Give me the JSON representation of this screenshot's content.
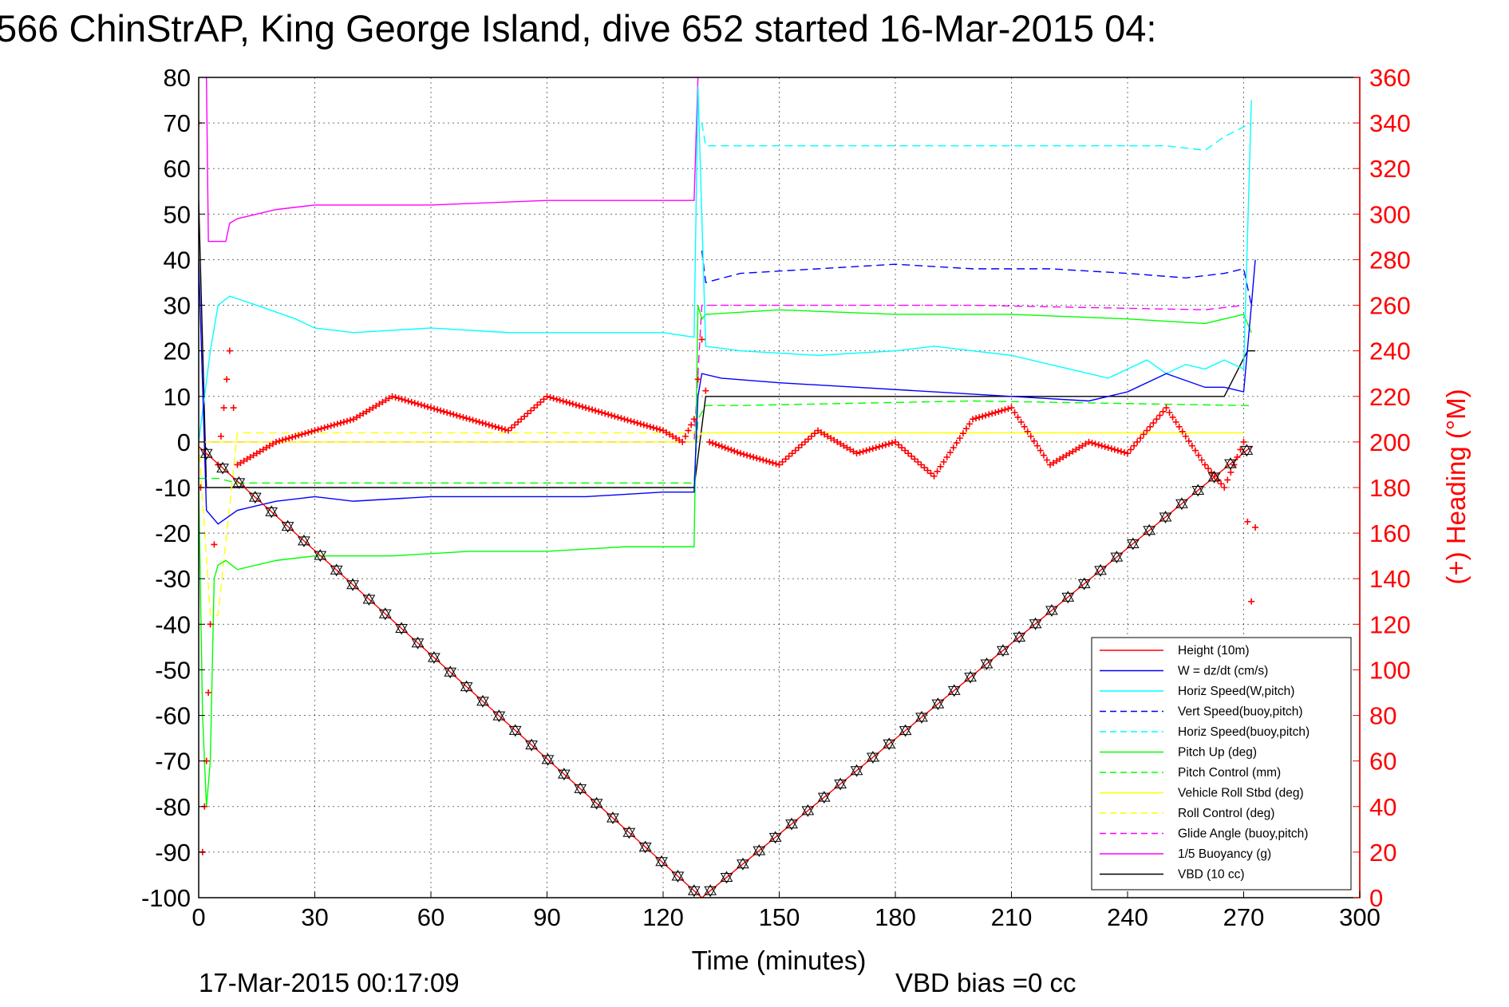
{
  "title": "566 ChinStrAP, King George Island, dive 652 started 16-Mar-2015 04:",
  "footer": {
    "timestamp": "17-Mar-2015 00:17:09",
    "vbd_bias": "VBD bias =0 cc"
  },
  "chart_data": {
    "type": "line",
    "title": "566 ChinStrAP, King George Island, dive 652 started 16-Mar-2015 04:",
    "xlabel": "Time (minutes)",
    "ylabel": "",
    "ylabel_right": "(+) Heading (°M)",
    "xlim": [
      0,
      300
    ],
    "ylim": [
      -100,
      80
    ],
    "ylim_right": [
      0,
      360
    ],
    "xticks": [
      "0",
      "30",
      "60",
      "90",
      "120",
      "150",
      "180",
      "210",
      "240",
      "270",
      "300"
    ],
    "yticks_left": [
      "80",
      "70",
      "60",
      "50",
      "40",
      "30",
      "20",
      "10",
      "0",
      "-10",
      "-20",
      "-30",
      "-40",
      "-50",
      "-60",
      "-70",
      "-80",
      "-90",
      "-100"
    ],
    "yticks_right": [
      "360",
      "340",
      "320",
      "300",
      "280",
      "260",
      "240",
      "220",
      "200",
      "180",
      "160",
      "140",
      "120",
      "100",
      "80",
      "60",
      "40",
      "20",
      "0"
    ],
    "grid": true,
    "legend_position": "bottom-right",
    "colors": {
      "red": "#ff0000",
      "blue": "#0000ff",
      "cyan": "#00ffff",
      "green": "#00ff00",
      "yellow": "#ffff00",
      "magenta": "#ff00ff",
      "black": "#000000"
    },
    "series": [
      {
        "name": "Height (10m)",
        "color": "#ff0000",
        "style": "solid",
        "x": [
          0,
          130,
          272
        ],
        "y": [
          -1,
          -100,
          -1
        ]
      },
      {
        "name": "W = dz/dt (cm/s)",
        "color": "#0000ff",
        "style": "solid",
        "x": [
          0,
          2,
          5,
          10,
          15,
          20,
          30,
          40,
          60,
          80,
          100,
          120,
          128,
          129,
          130,
          135,
          150,
          170,
          190,
          210,
          230,
          240,
          250,
          260,
          265,
          270,
          272,
          273
        ],
        "y": [
          40,
          -15,
          -18,
          -15,
          -14,
          -13,
          -12,
          -13,
          -12,
          -12,
          -12,
          -11,
          -11,
          10,
          15,
          14,
          13,
          12,
          11,
          10,
          9,
          11,
          15,
          12,
          12,
          11,
          30,
          40
        ]
      },
      {
        "name": "Horiz Speed(W,pitch)",
        "color": "#00ffff",
        "style": "solid",
        "x": [
          0,
          3,
          5,
          8,
          15,
          25,
          30,
          40,
          60,
          80,
          100,
          120,
          128,
          129,
          131,
          140,
          160,
          180,
          190,
          200,
          210,
          220,
          230,
          235,
          240,
          245,
          250,
          255,
          260,
          265,
          270,
          272
        ],
        "y": [
          0,
          20,
          30,
          32,
          30,
          27,
          25,
          24,
          25,
          24,
          24,
          24,
          23,
          78,
          21,
          20,
          19,
          20,
          21,
          20,
          19,
          17,
          15,
          14,
          16,
          18,
          15,
          17,
          16,
          18,
          16,
          75
        ]
      },
      {
        "name": "Vert Speed(buoy,pitch)",
        "color": "#0000ff",
        "style": "dashed",
        "x": [
          130,
          131,
          140,
          160,
          180,
          200,
          220,
          240,
          255,
          265,
          270,
          272
        ],
        "y": [
          42,
          35,
          37,
          38,
          39,
          38,
          38,
          37,
          36,
          37,
          38,
          30
        ]
      },
      {
        "name": "Horiz Speed(buoy,pitch)",
        "color": "#00ffff",
        "style": "dashed",
        "x": [
          130,
          131,
          140,
          160,
          180,
          200,
          220,
          240,
          250,
          260,
          265,
          272
        ],
        "y": [
          70,
          65,
          65,
          65,
          65,
          65,
          65,
          65,
          65,
          64,
          67,
          70
        ]
      },
      {
        "name": "Pitch Up (deg)",
        "color": "#00ff00",
        "style": "solid",
        "x": [
          0,
          1,
          2,
          3,
          4,
          5,
          7,
          10,
          20,
          30,
          50,
          70,
          90,
          110,
          128,
          129,
          130,
          131,
          150,
          180,
          210,
          240,
          260,
          265,
          270,
          272
        ],
        "y": [
          -10,
          -60,
          -80,
          -70,
          -30,
          -27,
          -26,
          -28,
          -26,
          -25,
          -25,
          -24,
          -24,
          -23,
          -23,
          30,
          27,
          28,
          29,
          28,
          28,
          27,
          26,
          27,
          28,
          24
        ]
      },
      {
        "name": "Pitch Control (mm)",
        "color": "#00ff00",
        "style": "dashed",
        "x": [
          0,
          3,
          5,
          10,
          60,
          128,
          129,
          131,
          140,
          200,
          270,
          272
        ],
        "y": [
          -8,
          -8,
          -8,
          -9,
          -9,
          -9,
          5,
          8,
          8,
          9,
          8,
          8
        ]
      },
      {
        "name": "Vehicle Roll Stbd (deg)",
        "color": "#ffff00",
        "style": "solid",
        "x": [
          0,
          10,
          128,
          130,
          270
        ],
        "y": [
          0,
          0,
          0,
          2,
          2
        ]
      },
      {
        "name": "Roll Control (deg)",
        "color": "#ffff00",
        "style": "dashed",
        "x": [
          0,
          3,
          5,
          10,
          128,
          130,
          270
        ],
        "y": [
          0,
          -38,
          -38,
          2,
          2,
          2,
          2
        ]
      },
      {
        "name": "Glide Angle (buoy,pitch)",
        "color": "#ff00ff",
        "style": "dashed",
        "x": [
          0,
          10,
          128,
          130,
          140,
          200,
          260,
          270
        ],
        "y": [
          0,
          0,
          0,
          30,
          30,
          30,
          29,
          30
        ]
      },
      {
        "name": "1/5 Buoyancy (g)",
        "color": "#ff00ff",
        "style": "solid",
        "x": [
          2,
          2.5,
          7,
          8,
          10,
          20,
          30,
          60,
          90,
          120,
          128,
          129
        ],
        "y": [
          80,
          44,
          44,
          48,
          49,
          51,
          52,
          52,
          53,
          53,
          53,
          80
        ]
      },
      {
        "name": "VBD (10 cc)",
        "color": "#000000",
        "style": "solid",
        "x": [
          0,
          2,
          3,
          128,
          131,
          135,
          220,
          240,
          265,
          268,
          271,
          273
        ],
        "y": [
          53,
          -10,
          -10,
          -10,
          10,
          10,
          10,
          10,
          10,
          15,
          20,
          20
        ]
      }
    ],
    "heading_series": {
      "name": "Heading (°M)",
      "axis": "right",
      "color": "#ff0000",
      "marker": "+",
      "x": [
        0,
        1,
        2,
        3,
        5,
        8,
        10,
        15,
        20,
        30,
        40,
        50,
        60,
        70,
        80,
        90,
        100,
        110,
        120,
        125,
        128,
        130,
        132,
        140,
        150,
        160,
        170,
        180,
        190,
        200,
        210,
        220,
        230,
        240,
        250,
        260,
        265,
        270,
        272,
        274
      ],
      "y": [
        340,
        20,
        60,
        120,
        190,
        240,
        190,
        195,
        200,
        205,
        210,
        220,
        215,
        210,
        205,
        220,
        215,
        210,
        205,
        200,
        210,
        245,
        200,
        195,
        190,
        205,
        195,
        200,
        185,
        210,
        215,
        190,
        200,
        195,
        215,
        190,
        180,
        200,
        130,
        195
      ]
    }
  }
}
